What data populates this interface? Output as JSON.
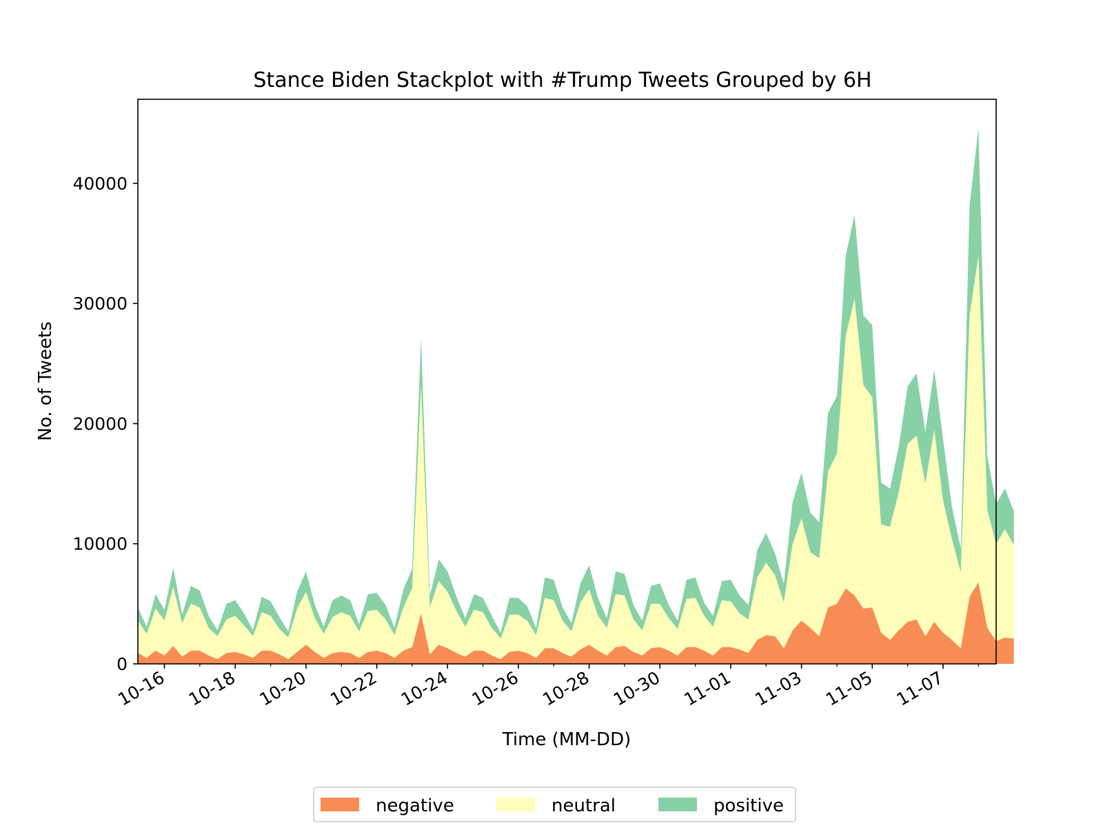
{
  "chart_data": {
    "type": "area",
    "stacked": true,
    "title": "Stance Biden Stackplot with #Trump Tweets Grouped by 6H",
    "xlabel": "Time (MM-DD)",
    "ylabel": "No. of Tweets",
    "ylim": [
      0,
      47000
    ],
    "xlim": [
      "10-15 06:00",
      "11-08 12:00"
    ],
    "bin": "6H",
    "yticks": [
      0,
      10000,
      20000,
      30000,
      40000
    ],
    "xticks": [
      "10-16",
      "10-18",
      "10-20",
      "10-22",
      "10-24",
      "10-26",
      "10-28",
      "10-30",
      "11-01",
      "11-03",
      "11-05",
      "11-07"
    ],
    "legend_position": "bottom-center",
    "grid": false,
    "x_start": "10-15 06:00",
    "series": [
      {
        "name": "negative",
        "color": "#f78d54",
        "values": [
          900,
          500,
          1100,
          700,
          1500,
          600,
          1100,
          1100,
          700,
          400,
          900,
          1000,
          800,
          500,
          1100,
          1100,
          800,
          400,
          1000,
          1600,
          1000,
          500,
          900,
          1000,
          900,
          500,
          1000,
          1100,
          900,
          500,
          1100,
          1400,
          4200,
          800,
          1600,
          1300,
          900,
          600,
          1100,
          1100,
          700,
          400,
          1000,
          1100,
          900,
          500,
          1300,
          1300,
          900,
          600,
          1200,
          1600,
          1100,
          700,
          1400,
          1500,
          1000,
          700,
          1300,
          1400,
          1100,
          700,
          1400,
          1400,
          1100,
          700,
          1400,
          1400,
          1200,
          900,
          2000,
          2400,
          2300,
          1300,
          2800,
          3600,
          3000,
          2300,
          4700,
          5000,
          6300,
          5700,
          4600,
          4700,
          2600,
          2000,
          2800,
          3500,
          3700,
          2300,
          3500,
          2600,
          2000,
          1300,
          5600,
          6800,
          3000,
          1900,
          2200,
          2100
        ]
      },
      {
        "name": "neutral",
        "color": "#fefeba",
        "values": [
          2700,
          2000,
          3500,
          2900,
          4900,
          2800,
          3900,
          3600,
          2300,
          1900,
          2800,
          3000,
          2400,
          1800,
          3200,
          2900,
          2100,
          1800,
          3600,
          4400,
          2800,
          2000,
          3000,
          3300,
          3100,
          2200,
          3400,
          3400,
          2800,
          1900,
          3600,
          4900,
          19000,
          3900,
          5300,
          4700,
          3500,
          2500,
          3400,
          3200,
          2300,
          1700,
          3100,
          3000,
          2700,
          1900,
          4200,
          4000,
          2700,
          2100,
          3900,
          4600,
          2900,
          2300,
          4400,
          4200,
          2700,
          2100,
          3700,
          3600,
          2700,
          2200,
          4000,
          4100,
          2900,
          2400,
          3900,
          3800,
          3000,
          2800,
          5200,
          6000,
          5100,
          3800,
          7200,
          8500,
          6300,
          6500,
          11300,
          12500,
          21000,
          24700,
          18600,
          17500,
          9000,
          9400,
          11500,
          14800,
          15300,
          12700,
          16000,
          11000,
          8400,
          6300,
          23400,
          27200,
          9800,
          8100,
          9000,
          7800
        ]
      },
      {
        "name": "positive",
        "color": "#88d1a6",
        "values": [
          1100,
          600,
          1200,
          900,
          1600,
          700,
          1500,
          1400,
          1000,
          500,
          1300,
          1300,
          1000,
          500,
          1300,
          1200,
          1000,
          500,
          1400,
          1700,
          1100,
          600,
          1400,
          1400,
          1300,
          600,
          1400,
          1400,
          1200,
          600,
          1500,
          1600,
          4000,
          1000,
          1800,
          1700,
          1200,
          700,
          1300,
          1200,
          1000,
          500,
          1400,
          1400,
          1200,
          600,
          1700,
          1700,
          1100,
          700,
          1600,
          2000,
          1500,
          800,
          1900,
          1800,
          1200,
          800,
          1500,
          1700,
          1100,
          700,
          1600,
          1700,
          1100,
          900,
          1600,
          1800,
          1500,
          1200,
          2300,
          2500,
          1800,
          1600,
          3500,
          3800,
          3300,
          3000,
          4900,
          4800,
          6700,
          7000,
          5800,
          6000,
          3500,
          3200,
          3800,
          4800,
          5200,
          4300,
          5000,
          5100,
          2700,
          2000,
          9200,
          10600,
          4500,
          3300,
          3400,
          2800
        ]
      }
    ]
  }
}
